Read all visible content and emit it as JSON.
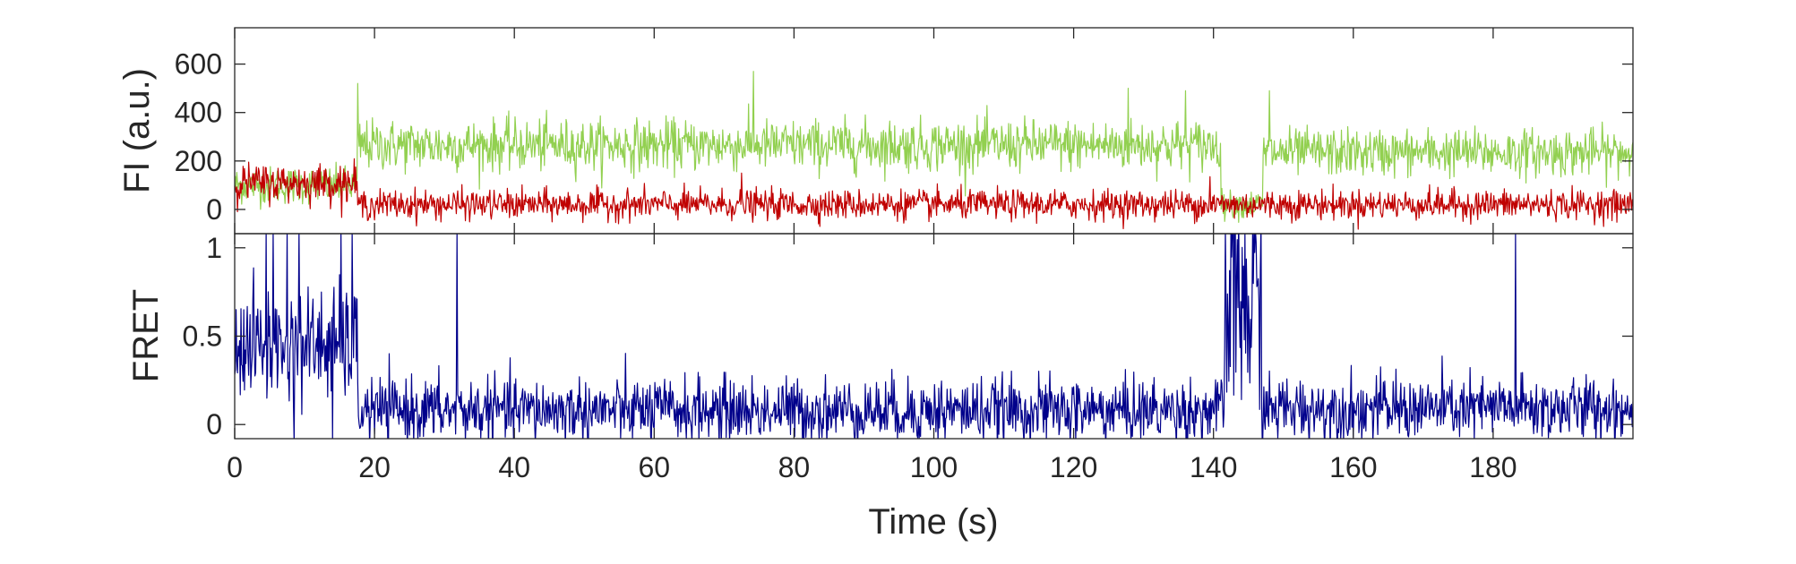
{
  "chart_data": [
    {
      "type": "line",
      "panel": "intensity",
      "title": "",
      "xlabel": "",
      "ylabel": "FI (a.u.)",
      "xlim": [
        0,
        200
      ],
      "ylim": [
        -100,
        750
      ],
      "yticks": [
        0,
        200,
        400,
        600
      ],
      "ytick_labels": [
        "0",
        "200",
        "400",
        "600"
      ],
      "grid": false,
      "legend": "none",
      "series": [
        {
          "color": "#92d050",
          "segments": [
            {
              "t0": 0,
              "t1": 17.5,
              "mean": 100,
              "noise": 38
            },
            {
              "t0": 17.5,
              "t1": 141,
              "mean": 265,
              "noise": 52
            },
            {
              "t0": 141,
              "t1": 147,
              "mean": 20,
              "noise": 28
            },
            {
              "t0": 147,
              "t1": 200,
              "mean": 235,
              "noise": 48
            }
          ],
          "spikes": [
            [
              17.6,
              520
            ],
            [
              74.2,
              570
            ],
            [
              127.8,
              500
            ],
            [
              136,
              490
            ],
            [
              148,
              490
            ]
          ]
        },
        {
          "color": "#c00000",
          "segments": [
            {
              "t0": 0,
              "t1": 17.5,
              "mean": 110,
              "noise": 38
            },
            {
              "t0": 17.5,
              "t1": 200,
              "mean": 20,
              "noise": 30
            }
          ],
          "spikes": [
            [
              72.5,
              150
            ],
            [
              139.5,
              135
            ]
          ]
        }
      ]
    },
    {
      "type": "line",
      "panel": "fret",
      "title": "",
      "xlabel": "Time (s)",
      "ylabel": "FRET",
      "xlim": [
        0,
        200
      ],
      "ylim": [
        -0.08,
        1.08
      ],
      "yticks": [
        0,
        0.5,
        1
      ],
      "ytick_labels": [
        "0",
        "0.5",
        "1"
      ],
      "xticks": [
        0,
        20,
        40,
        60,
        80,
        100,
        120,
        140,
        160,
        180
      ],
      "xtick_labels": [
        "0",
        "20",
        "40",
        "60",
        "80",
        "100",
        "120",
        "140",
        "160",
        "180"
      ],
      "grid": false,
      "legend": "none",
      "series": [
        {
          "color": "#00008b",
          "segments": [
            {
              "t0": 0,
              "t1": 17.5,
              "mean": 0.45,
              "noise": 0.16
            },
            {
              "t0": 17.5,
              "t1": 141.5,
              "mean": 0.08,
              "noise": 0.09
            },
            {
              "t0": 141.5,
              "t1": 146.8,
              "mean": 0.65,
              "noise": 0.35
            },
            {
              "t0": 146.8,
              "t1": 200,
              "mean": 0.09,
              "noise": 0.09
            }
          ],
          "spikes": [
            [
              4.5,
              1.1
            ],
            [
              5.5,
              1.1
            ],
            [
              7.5,
              1.1
            ],
            [
              9.2,
              1.1
            ],
            [
              15.2,
              1.1
            ],
            [
              16.8,
              1.1
            ],
            [
              31.8,
              1.1
            ],
            [
              143,
              1.1
            ],
            [
              144.5,
              1.1
            ],
            [
              145.6,
              1.1
            ],
            [
              183.2,
              1.1
            ],
            [
              8.5,
              -0.1
            ],
            [
              14,
              -0.1
            ]
          ]
        }
      ]
    }
  ]
}
